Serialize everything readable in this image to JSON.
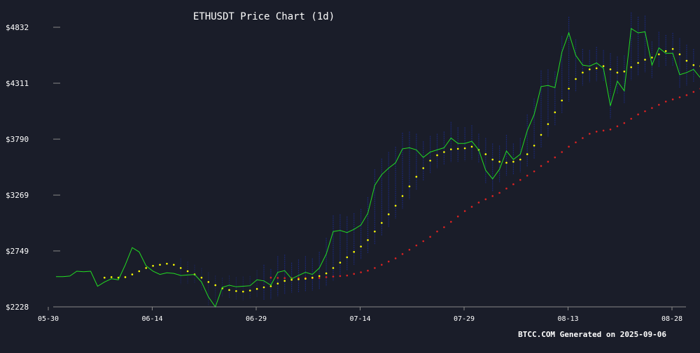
{
  "chart_data": {
    "type": "line",
    "title": "ETHUSDT Price Chart (1d)",
    "footer": "BTCC.COM Generated on 2025-09-06",
    "y_ticks": [
      "$4832",
      "$4311",
      "$3790",
      "$3269",
      "$2749",
      "$2228"
    ],
    "x_ticks": [
      "05-30",
      "06-14",
      "06-29",
      "07-14",
      "07-29",
      "08-13",
      "08-28"
    ],
    "ylim": [
      2228,
      4832
    ],
    "grid": false,
    "legend": "none",
    "colors": {
      "background": "#1a1d29",
      "price": "#22dd22",
      "fast_ma": "#ffff00",
      "slow_ma": "#dd2222",
      "band": "#1c2a78",
      "axis": "#888888",
      "text": "#ffffff"
    },
    "series": [
      {
        "key": "price",
        "values": [
          2510,
          2510,
          2515,
          2560,
          2555,
          2560,
          2420,
          2460,
          2490,
          2480,
          2620,
          2780,
          2740,
          2610,
          2560,
          2530,
          2545,
          2540,
          2520,
          2525,
          2530,
          2460,
          2320,
          2228,
          2410,
          2430,
          2415,
          2420,
          2425,
          2480,
          2470,
          2430,
          2550,
          2565,
          2490,
          2520,
          2550,
          2530,
          2590,
          2720,
          2930,
          2940,
          2920,
          2950,
          2990,
          3100,
          3360,
          3460,
          3520,
          3570,
          3700,
          3710,
          3690,
          3620,
          3670,
          3690,
          3710,
          3800,
          3750,
          3750,
          3770,
          3690,
          3500,
          3420,
          3510,
          3680,
          3600,
          3650,
          3870,
          4020,
          4280,
          4290,
          4270,
          4600,
          4780,
          4570,
          4480,
          4470,
          4500,
          4450,
          4100,
          4330,
          4240,
          4820,
          4780,
          4790,
          4480,
          4640,
          4590,
          4590,
          4390,
          4410,
          4440,
          4360,
          4380,
          4480,
          4310,
          4320,
          4310
        ]
      },
      {
        "key": "fast_ma",
        "values": [
          null,
          null,
          null,
          null,
          null,
          null,
          null,
          2500,
          2505,
          2500,
          2505,
          2530,
          2560,
          2590,
          2610,
          2620,
          2630,
          2620,
          2590,
          2560,
          2530,
          2500,
          2460,
          2430,
          2400,
          2385,
          2375,
          2370,
          2380,
          2395,
          2410,
          2420,
          2445,
          2470,
          2480,
          2485,
          2490,
          2500,
          2515,
          2540,
          2590,
          2640,
          2690,
          2740,
          2790,
          2850,
          2930,
          3010,
          3090,
          3170,
          3260,
          3350,
          3440,
          3520,
          3590,
          3640,
          3670,
          3695,
          3700,
          3705,
          3720,
          3690,
          3650,
          3600,
          3580,
          3570,
          3580,
          3600,
          3650,
          3730,
          3830,
          3930,
          4040,
          4150,
          4260,
          4350,
          4410,
          4440,
          4450,
          4470,
          4440,
          4410,
          4420,
          4460,
          4500,
          4530,
          4550,
          4580,
          4610,
          4630,
          4580,
          4520,
          4480,
          4470,
          4450,
          4430,
          4410,
          4390,
          4360
        ]
      },
      {
        "key": "slow_ma",
        "values": [
          null,
          null,
          null,
          null,
          null,
          null,
          null,
          null,
          null,
          null,
          null,
          null,
          null,
          null,
          null,
          null,
          null,
          null,
          null,
          null,
          null,
          null,
          null,
          null,
          null,
          null,
          null,
          null,
          null,
          null,
          null,
          2500,
          2498,
          2496,
          2495,
          2496,
          2497,
          2496,
          2498,
          2505,
          2510,
          2515,
          2520,
          2535,
          2550,
          2565,
          2590,
          2620,
          2650,
          2680,
          2720,
          2760,
          2800,
          2840,
          2880,
          2930,
          2970,
          3020,
          3070,
          3120,
          3160,
          3200,
          3230,
          3260,
          3290,
          3330,
          3370,
          3410,
          3450,
          3490,
          3540,
          3580,
          3620,
          3670,
          3720,
          3760,
          3800,
          3840,
          3860,
          3870,
          3880,
          3910,
          3940,
          3980,
          4020,
          4050,
          4080,
          4110,
          4140,
          4160,
          4180,
          4200,
          4230,
          4260,
          4290,
          4320,
          4350,
          4380,
          4400
        ]
      }
    ]
  }
}
